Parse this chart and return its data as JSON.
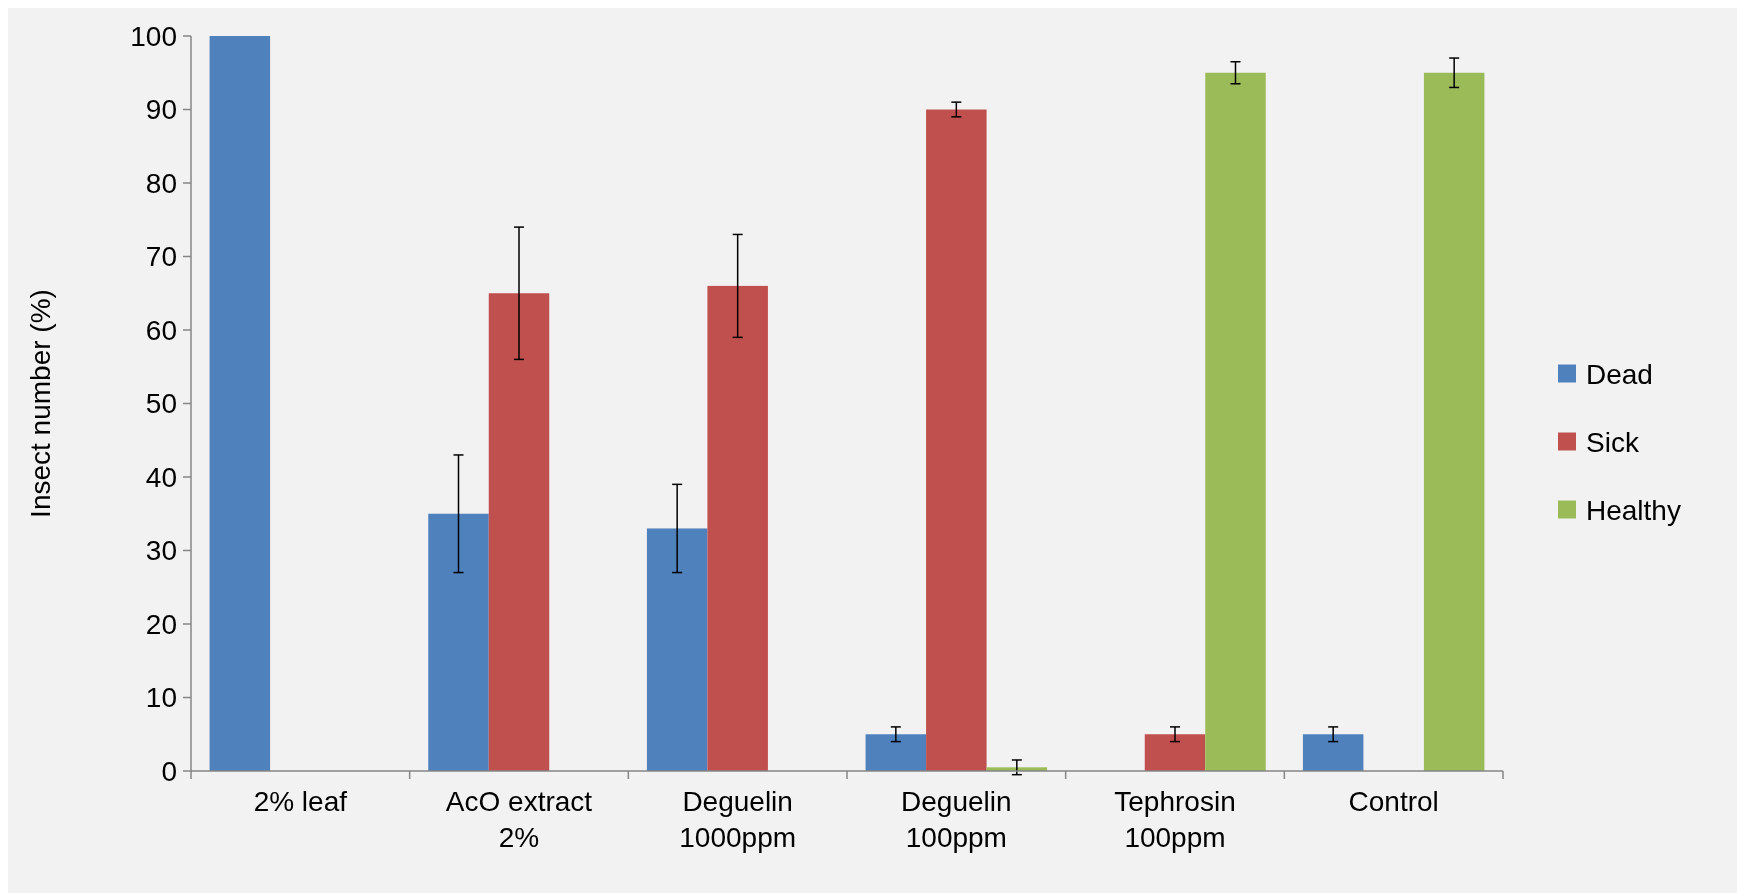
{
  "chart_data": {
    "type": "bar",
    "ylabel": "Insect number (%)",
    "categories": [
      "2% leaf",
      "AcO extract 2%",
      "Deguelin 1000ppm",
      "Deguelin 100ppm",
      "Tephrosin 100ppm",
      "Control"
    ],
    "series": [
      {
        "name": "Dead",
        "color": "#4f81bd",
        "values": [
          100,
          35,
          33,
          5,
          0,
          5
        ],
        "errors": [
          null,
          8,
          6,
          1,
          null,
          1
        ]
      },
      {
        "name": "Sick",
        "color": "#c0504d",
        "values": [
          0,
          65,
          66,
          90,
          5,
          0
        ],
        "errors": [
          null,
          9,
          7,
          1,
          1,
          null
        ]
      },
      {
        "name": "Healthy",
        "color": "#9bbb59",
        "values": [
          0,
          0,
          0,
          0.5,
          95,
          95
        ],
        "errors": [
          null,
          null,
          null,
          1,
          1.5,
          2
        ]
      }
    ],
    "ylim": [
      0,
      100
    ],
    "yticks": [
      0,
      10,
      20,
      30,
      40,
      50,
      60,
      70,
      80,
      90,
      100
    ],
    "grid": false,
    "legend": "right"
  }
}
